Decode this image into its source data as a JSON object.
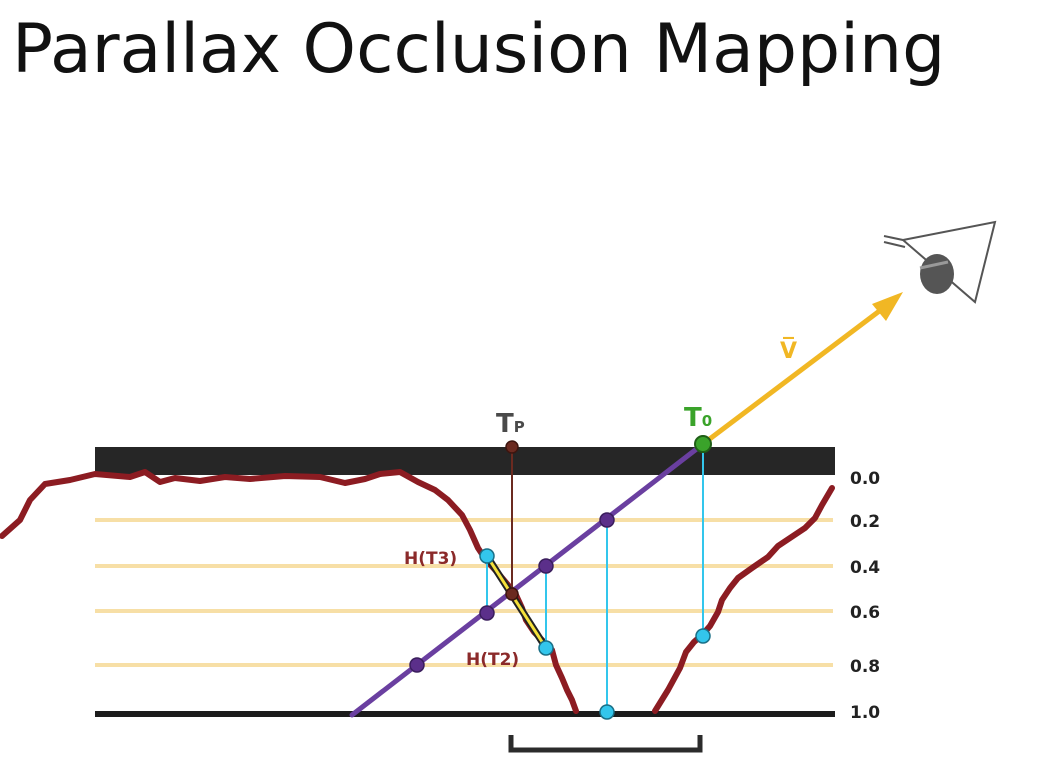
{
  "title": "Parallax Occlusion Mapping",
  "levels": [
    "0.0",
    "0.2",
    "0.4",
    "0.6",
    "0.8",
    "1.0"
  ],
  "labels": {
    "t0_main": "T",
    "t0_sub": "0",
    "tp_main": "T",
    "tp_sub": "P",
    "h_t3": "H(T3)",
    "h_t2": "H(T2)",
    "view_vector": "V̅"
  },
  "colors": {
    "surface_band": "#262626",
    "base_line": "#1c1c1c",
    "layer_lines": "#f7dfa6",
    "heightfield": "#8c1c22",
    "ray": "#6a3fa0",
    "view_vector": "#f1b724",
    "projection_lines": "#33c6ec",
    "tp_line": "#6b2a20",
    "t0_point": "#3aa32a",
    "intersection_segment": "#f5e03a"
  },
  "icons": [
    "eye-icon",
    "arrow-head-icon"
  ]
}
